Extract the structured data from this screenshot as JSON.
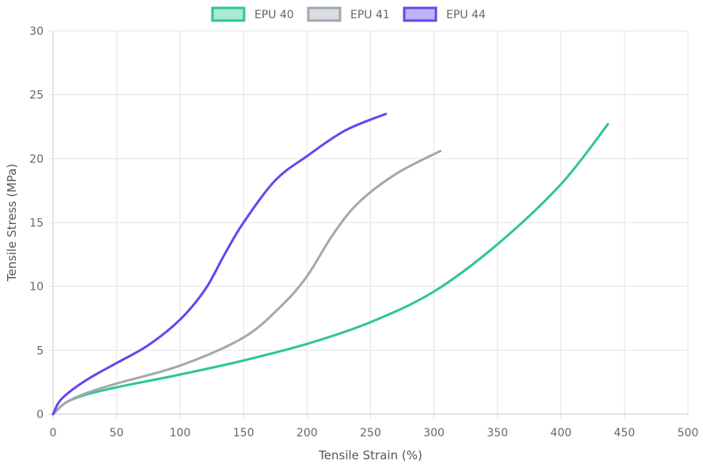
{
  "chart_data": {
    "type": "line",
    "title": "",
    "xlabel": "Tensile Strain (%)",
    "ylabel": "Tensile Stress (MPa)",
    "xlim": [
      0,
      500
    ],
    "ylim": [
      0,
      30
    ],
    "x_ticks": [
      "0",
      "50",
      "100",
      "150",
      "200",
      "250",
      "300",
      "350",
      "400",
      "450",
      "500"
    ],
    "y_ticks": [
      "0",
      "5",
      "10",
      "15",
      "20",
      "25",
      "30"
    ],
    "grid": true,
    "legend_position": "top-center",
    "series": [
      {
        "name": "EPU 40",
        "color": "#2ec598",
        "fill": "#a9e9d6",
        "points": [
          [
            0,
            0
          ],
          [
            10,
            0.9
          ],
          [
            25,
            1.5
          ],
          [
            50,
            2.1
          ],
          [
            100,
            3.1
          ],
          [
            150,
            4.2
          ],
          [
            200,
            5.5
          ],
          [
            250,
            7.2
          ],
          [
            300,
            9.6
          ],
          [
            350,
            13.3
          ],
          [
            400,
            18.0
          ],
          [
            437,
            22.7
          ]
        ]
      },
      {
        "name": "EPU 41",
        "color": "#a2a8b0",
        "fill": "#dadde1",
        "points": [
          [
            0,
            0
          ],
          [
            10,
            0.9
          ],
          [
            25,
            1.6
          ],
          [
            50,
            2.4
          ],
          [
            100,
            3.8
          ],
          [
            150,
            6.0
          ],
          [
            180,
            8.5
          ],
          [
            200,
            10.8
          ],
          [
            220,
            14.0
          ],
          [
            240,
            16.5
          ],
          [
            270,
            18.8
          ],
          [
            305,
            20.6
          ]
        ]
      },
      {
        "name": "EPU 44",
        "color": "#6247ee",
        "fill": "#beb4fa",
        "points": [
          [
            0,
            0
          ],
          [
            5,
            1.0
          ],
          [
            15,
            1.9
          ],
          [
            30,
            2.9
          ],
          [
            50,
            4.0
          ],
          [
            75,
            5.4
          ],
          [
            100,
            7.4
          ],
          [
            120,
            9.8
          ],
          [
            135,
            12.5
          ],
          [
            150,
            15.0
          ],
          [
            175,
            18.3
          ],
          [
            200,
            20.2
          ],
          [
            230,
            22.2
          ],
          [
            262,
            23.5
          ]
        ]
      }
    ]
  }
}
